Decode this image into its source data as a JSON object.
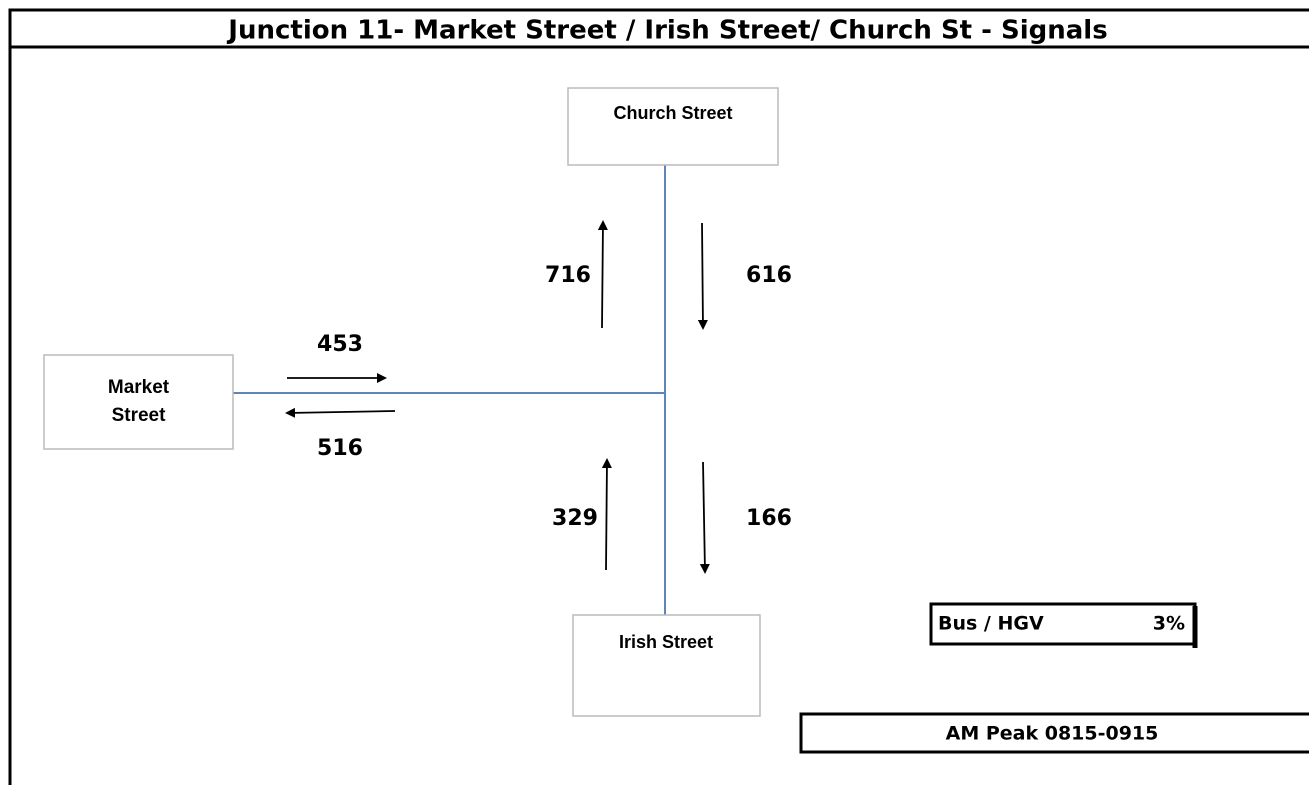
{
  "header": {
    "title": "Junction 11- Market Street / Irish Street/ Church St - Signals"
  },
  "nodes": [
    {
      "label": "Church Street"
    },
    {
      "label": "Market Street"
    },
    {
      "label": "Irish Street"
    }
  ],
  "flows": [
    {
      "value": 716
    },
    {
      "value": 616
    },
    {
      "value": 453
    },
    {
      "value": 516
    },
    {
      "value": 329
    },
    {
      "value": 166
    }
  ],
  "vehicle_share": {
    "label": "Bus / HGV",
    "value": "3%"
  },
  "period": "AM Peak 0815-0915"
}
